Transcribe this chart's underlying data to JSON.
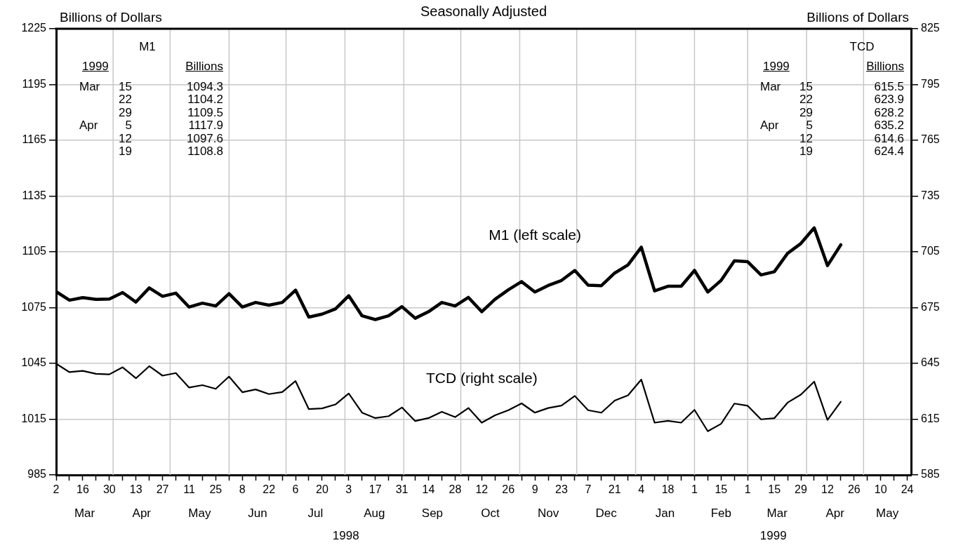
{
  "chart_data": {
    "type": "line",
    "title": "Seasonally Adjusted",
    "ylabel": "Billions of Dollars",
    "y2label": "Billions of Dollars",
    "x": [
      "1998-03-02",
      "1998-03-09",
      "1998-03-16",
      "1998-03-23",
      "1998-03-30",
      "1998-04-06",
      "1998-04-13",
      "1998-04-20",
      "1998-04-27",
      "1998-05-04",
      "1998-05-11",
      "1998-05-18",
      "1998-05-25",
      "1998-06-01",
      "1998-06-08",
      "1998-06-15",
      "1998-06-22",
      "1998-06-29",
      "1998-07-06",
      "1998-07-13",
      "1998-07-20",
      "1998-07-27",
      "1998-08-03",
      "1998-08-10",
      "1998-08-17",
      "1998-08-24",
      "1998-08-31",
      "1998-09-07",
      "1998-09-14",
      "1998-09-21",
      "1998-09-28",
      "1998-10-05",
      "1998-10-12",
      "1998-10-19",
      "1998-10-26",
      "1998-11-02",
      "1998-11-09",
      "1998-11-16",
      "1998-11-23",
      "1998-11-30",
      "1998-12-07",
      "1998-12-14",
      "1998-12-21",
      "1998-12-28",
      "1999-01-04",
      "1999-01-11",
      "1999-01-18",
      "1999-01-25",
      "1999-02-01",
      "1999-02-08",
      "1999-02-15",
      "1999-02-22",
      "1999-03-01",
      "1999-03-08",
      "1999-03-15",
      "1999-03-22",
      "1999-03-29",
      "1999-04-05",
      "1999-04-12",
      "1999-04-19"
    ],
    "series": [
      {
        "name": "M1 (left scale)",
        "color": "#000000",
        "axis": "y",
        "values": [
          1083.6,
          1079.0,
          1080.4,
          1079.4,
          1079.6,
          1083.1,
          1078.0,
          1085.6,
          1081.1,
          1082.8,
          1075.3,
          1077.4,
          1075.9,
          1082.5,
          1075.3,
          1077.8,
          1076.3,
          1077.8,
          1084.4,
          1069.9,
          1071.5,
          1074.3,
          1081.4,
          1070.6,
          1068.6,
          1070.6,
          1075.5,
          1069.3,
          1072.8,
          1077.8,
          1075.9,
          1080.5,
          1072.8,
          1079.5,
          1084.6,
          1089.0,
          1083.4,
          1086.9,
          1089.6,
          1095.0,
          1087.1,
          1086.8,
          1093.6,
          1098.0,
          1107.5,
          1084.0,
          1086.5,
          1086.5,
          1095.0,
          1083.4,
          1089.6,
          1100.2,
          1099.7,
          1092.6,
          1094.3,
          1104.2,
          1109.5,
          1117.9,
          1097.6,
          1108.8
        ]
      },
      {
        "name": "TCD (right scale)",
        "color": "#000000",
        "axis": "y2",
        "values": [
          644.8,
          640.3,
          641.0,
          639.4,
          639.1,
          642.9,
          637.0,
          643.5,
          638.4,
          639.8,
          632.0,
          633.3,
          631.3,
          637.9,
          629.5,
          631.0,
          628.5,
          629.6,
          635.5,
          620.4,
          620.8,
          622.9,
          628.8,
          618.5,
          615.6,
          616.6,
          621.3,
          614.0,
          615.6,
          619.0,
          616.1,
          621.0,
          613.1,
          617.1,
          619.8,
          623.5,
          618.5,
          621.0,
          622.3,
          627.5,
          619.8,
          618.5,
          625.0,
          627.8,
          636.3,
          613.1,
          614.1,
          613.1,
          620.0,
          608.5,
          612.5,
          623.4,
          622.2,
          614.9,
          615.5,
          623.9,
          628.2,
          635.2,
          614.6,
          624.4
        ]
      }
    ],
    "xlim": [
      "1998-03-02",
      "1999-05-26"
    ],
    "xticks": [
      {
        "value": "1998-03-02",
        "label": "2"
      },
      {
        "value": "1998-03-09",
        "label": null
      },
      {
        "value": "1998-03-16",
        "label": "16"
      },
      {
        "value": "1998-03-23",
        "label": null
      },
      {
        "value": "1998-03-30",
        "label": "30"
      },
      {
        "value": "1998-04-06",
        "label": null
      },
      {
        "value": "1998-04-13",
        "label": "13"
      },
      {
        "value": "1998-04-20",
        "label": null
      },
      {
        "value": "1998-04-27",
        "label": "27"
      },
      {
        "value": "1998-05-04",
        "label": null
      },
      {
        "value": "1998-05-11",
        "label": "11"
      },
      {
        "value": "1998-05-18",
        "label": null
      },
      {
        "value": "1998-05-25",
        "label": "25"
      },
      {
        "value": "1998-06-01",
        "label": null
      },
      {
        "value": "1998-06-08",
        "label": "8"
      },
      {
        "value": "1998-06-15",
        "label": null
      },
      {
        "value": "1998-06-22",
        "label": "22"
      },
      {
        "value": "1998-06-29",
        "label": null
      },
      {
        "value": "1998-07-06",
        "label": "6"
      },
      {
        "value": "1998-07-13",
        "label": null
      },
      {
        "value": "1998-07-20",
        "label": "20"
      },
      {
        "value": "1998-07-27",
        "label": null
      },
      {
        "value": "1998-08-03",
        "label": "3"
      },
      {
        "value": "1998-08-10",
        "label": null
      },
      {
        "value": "1998-08-17",
        "label": "17"
      },
      {
        "value": "1998-08-24",
        "label": null
      },
      {
        "value": "1998-08-31",
        "label": "31"
      },
      {
        "value": "1998-09-07",
        "label": null
      },
      {
        "value": "1998-09-14",
        "label": "14"
      },
      {
        "value": "1998-09-21",
        "label": null
      },
      {
        "value": "1998-09-28",
        "label": "28"
      },
      {
        "value": "1998-10-05",
        "label": null
      },
      {
        "value": "1998-10-12",
        "label": "12"
      },
      {
        "value": "1998-10-19",
        "label": null
      },
      {
        "value": "1998-10-26",
        "label": "26"
      },
      {
        "value": "1998-11-02",
        "label": null
      },
      {
        "value": "1998-11-09",
        "label": "9"
      },
      {
        "value": "1998-11-16",
        "label": null
      },
      {
        "value": "1998-11-23",
        "label": "23"
      },
      {
        "value": "1998-11-30",
        "label": null
      },
      {
        "value": "1998-12-07",
        "label": "7"
      },
      {
        "value": "1998-12-14",
        "label": null
      },
      {
        "value": "1998-12-21",
        "label": "21"
      },
      {
        "value": "1998-12-28",
        "label": null
      },
      {
        "value": "1999-01-04",
        "label": "4"
      },
      {
        "value": "1999-01-11",
        "label": null
      },
      {
        "value": "1999-01-18",
        "label": "18"
      },
      {
        "value": "1999-01-25",
        "label": null
      },
      {
        "value": "1999-02-01",
        "label": "1"
      },
      {
        "value": "1999-02-08",
        "label": null
      },
      {
        "value": "1999-02-15",
        "label": "15"
      },
      {
        "value": "1999-02-22",
        "label": null
      },
      {
        "value": "1999-03-01",
        "label": "1"
      },
      {
        "value": "1999-03-08",
        "label": null
      },
      {
        "value": "1999-03-15",
        "label": "15"
      },
      {
        "value": "1999-03-22",
        "label": null
      },
      {
        "value": "1999-03-29",
        "label": "29"
      },
      {
        "value": "1999-04-05",
        "label": null
      },
      {
        "value": "1999-04-12",
        "label": "12"
      },
      {
        "value": "1999-04-19",
        "label": null
      },
      {
        "value": "1999-04-26",
        "label": "26"
      },
      {
        "value": "1999-05-03",
        "label": null
      },
      {
        "value": "1999-05-10",
        "label": "10"
      },
      {
        "value": "1999-05-17",
        "label": null
      },
      {
        "value": "1999-05-24",
        "label": "24"
      }
    ],
    "ylim": [
      985,
      1225
    ],
    "yticks": [
      985,
      1015,
      1045,
      1075,
      1105,
      1135,
      1165,
      1195,
      1225
    ],
    "y2lim": [
      585,
      825
    ],
    "y2ticks": [
      585,
      615,
      645,
      675,
      705,
      735,
      765,
      795,
      825
    ],
    "grid": "y",
    "legend": false,
    "ref_lines": [
      {
        "axis": "x",
        "value": "1998-04-01",
        "color": "#c8c8c8"
      },
      {
        "axis": "x",
        "value": "1998-05-01",
        "color": "#c8c8c8"
      },
      {
        "axis": "x",
        "value": "1998-06-01",
        "color": "#c8c8c8"
      },
      {
        "axis": "x",
        "value": "1998-07-01",
        "color": "#c8c8c8"
      },
      {
        "axis": "x",
        "value": "1998-08-01",
        "color": "#c8c8c8"
      },
      {
        "axis": "x",
        "value": "1998-09-01",
        "color": "#c8c8c8"
      },
      {
        "axis": "x",
        "value": "1998-10-01",
        "color": "#c8c8c8"
      },
      {
        "axis": "x",
        "value": "1998-11-01",
        "color": "#c8c8c8"
      },
      {
        "axis": "x",
        "value": "1998-12-01",
        "color": "#c8c8c8"
      },
      {
        "axis": "x",
        "value": "1999-01-01",
        "color": "#c8c8c8"
      },
      {
        "axis": "x",
        "value": "1999-02-01",
        "color": "#c8c8c8"
      },
      {
        "axis": "x",
        "value": "1999-03-01",
        "color": "#c8c8c8"
      },
      {
        "axis": "x",
        "value": "1999-04-01",
        "color": "#c8c8c8"
      },
      {
        "axis": "x",
        "value": "1999-05-01",
        "color": "#c8c8c8"
      }
    ],
    "annotations": [
      "Mar",
      "Apr",
      "May",
      "Jun",
      "Jul",
      "Aug",
      "Sep",
      "Oct",
      "Nov",
      "Dec",
      "Jan",
      "Feb",
      "Mar",
      "Apr",
      "May",
      "1998",
      "1999",
      "M1",
      "1999",
      "Billions",
      "Mar 15 1094.3",
      "22 1104.2",
      "29 1109.5",
      "Apr 5 1117.9",
      "12 1097.6",
      "19 1108.8",
      "TCD",
      "1999",
      "Billions",
      "Mar 15 615.5",
      "22 623.9",
      "29 628.2",
      "Apr 5 635.2",
      "12 614.6",
      "19 624.4"
    ]
  }
}
